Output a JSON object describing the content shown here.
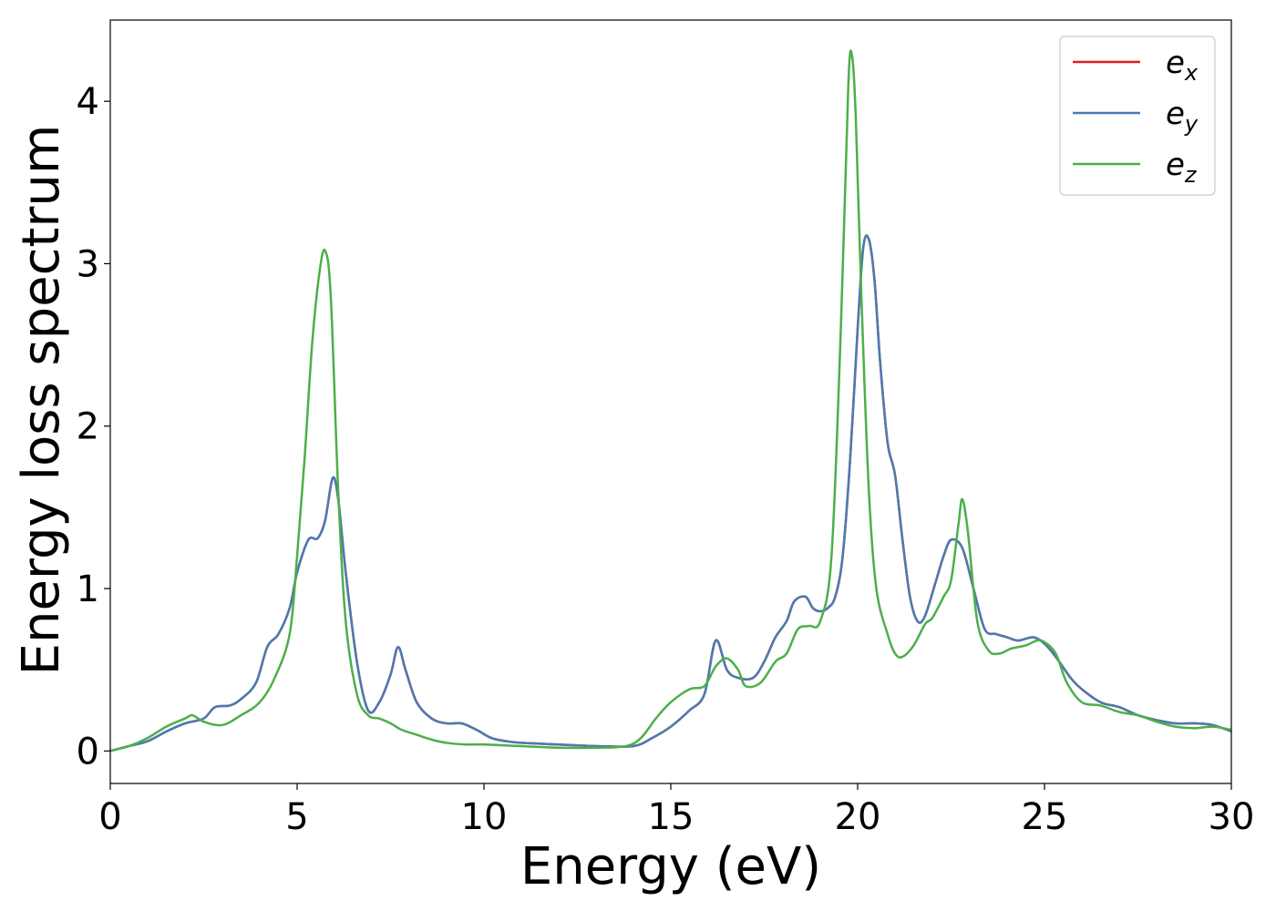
{
  "chart_data": {
    "type": "line",
    "title": "",
    "xlabel": "Energy (eV)",
    "ylabel": "Energy loss spectrum",
    "xlim": [
      0,
      30
    ],
    "ylim": [
      -0.2,
      4.5
    ],
    "xticks": [
      0,
      5,
      10,
      15,
      20,
      25,
      30
    ],
    "xtick_labels": [
      "0",
      "5",
      "10",
      "15",
      "20",
      "25",
      "30"
    ],
    "yticks": [
      0,
      1,
      2,
      3,
      4
    ],
    "ytick_labels": [
      "0",
      "1",
      "2",
      "3",
      "4"
    ],
    "grid": false,
    "legend_position": "top-right",
    "series": [
      {
        "name": "e_x",
        "legend_base": "e",
        "legend_sub": "x",
        "color": "#e41a1c",
        "x": [
          0,
          0.5,
          1,
          1.5,
          2,
          2.5,
          2.8,
          3.2,
          3.5,
          3.9,
          4.2,
          4.5,
          4.8,
          5.0,
          5.3,
          5.55,
          5.75,
          5.95,
          6.1,
          6.3,
          6.6,
          6.9,
          7.2,
          7.5,
          7.7,
          7.9,
          8.2,
          8.6,
          9.0,
          9.4,
          9.8,
          10.2,
          10.6,
          11,
          12,
          13,
          14,
          14.5,
          15,
          15.5,
          15.9,
          16.2,
          16.5,
          16.8,
          17.2,
          17.5,
          17.8,
          18.1,
          18.3,
          18.6,
          18.8,
          19.0,
          19.2,
          19.4,
          19.6,
          19.8,
          20.0,
          20.15,
          20.3,
          20.45,
          20.6,
          20.8,
          21.0,
          21.2,
          21.4,
          21.6,
          21.8,
          22.1,
          22.3,
          22.5,
          22.8,
          23.1,
          23.4,
          23.7,
          24.0,
          24.3,
          24.7,
          25.0,
          25.3,
          25.7,
          26.0,
          26.5,
          27.0,
          27.5,
          28.0,
          28.5,
          29.0,
          29.5,
          30.0
        ],
        "y": [
          0.0,
          0.03,
          0.06,
          0.12,
          0.17,
          0.2,
          0.27,
          0.28,
          0.32,
          0.42,
          0.64,
          0.72,
          0.88,
          1.1,
          1.3,
          1.31,
          1.42,
          1.68,
          1.55,
          1.1,
          0.55,
          0.25,
          0.3,
          0.47,
          0.64,
          0.5,
          0.3,
          0.2,
          0.17,
          0.17,
          0.13,
          0.08,
          0.06,
          0.05,
          0.04,
          0.03,
          0.03,
          0.08,
          0.15,
          0.25,
          0.35,
          0.68,
          0.5,
          0.45,
          0.45,
          0.55,
          0.7,
          0.8,
          0.92,
          0.95,
          0.88,
          0.86,
          0.88,
          0.95,
          1.2,
          1.8,
          2.6,
          3.1,
          3.15,
          2.9,
          2.4,
          1.9,
          1.7,
          1.3,
          0.95,
          0.8,
          0.83,
          1.05,
          1.2,
          1.3,
          1.25,
          1.0,
          0.75,
          0.72,
          0.7,
          0.68,
          0.7,
          0.66,
          0.58,
          0.45,
          0.38,
          0.3,
          0.27,
          0.22,
          0.19,
          0.17,
          0.17,
          0.16,
          0.12
        ]
      },
      {
        "name": "e_y",
        "legend_base": "e",
        "legend_sub": "y",
        "color": "#4a7bb0",
        "x": [
          0,
          0.5,
          1,
          1.5,
          2,
          2.5,
          2.8,
          3.2,
          3.5,
          3.9,
          4.2,
          4.5,
          4.8,
          5.0,
          5.3,
          5.55,
          5.75,
          5.95,
          6.1,
          6.3,
          6.6,
          6.9,
          7.2,
          7.5,
          7.7,
          7.9,
          8.2,
          8.6,
          9.0,
          9.4,
          9.8,
          10.2,
          10.6,
          11,
          12,
          13,
          14,
          14.5,
          15,
          15.5,
          15.9,
          16.2,
          16.5,
          16.8,
          17.2,
          17.5,
          17.8,
          18.1,
          18.3,
          18.6,
          18.8,
          19.0,
          19.2,
          19.4,
          19.6,
          19.8,
          20.0,
          20.15,
          20.3,
          20.45,
          20.6,
          20.8,
          21.0,
          21.2,
          21.4,
          21.6,
          21.8,
          22.1,
          22.3,
          22.5,
          22.8,
          23.1,
          23.4,
          23.7,
          24.0,
          24.3,
          24.7,
          25.0,
          25.3,
          25.7,
          26.0,
          26.5,
          27.0,
          27.5,
          28.0,
          28.5,
          29.0,
          29.5,
          30.0
        ],
        "y": [
          0.0,
          0.03,
          0.06,
          0.12,
          0.17,
          0.2,
          0.27,
          0.28,
          0.32,
          0.42,
          0.64,
          0.72,
          0.88,
          1.1,
          1.3,
          1.31,
          1.42,
          1.68,
          1.55,
          1.1,
          0.55,
          0.25,
          0.3,
          0.47,
          0.64,
          0.5,
          0.3,
          0.2,
          0.17,
          0.17,
          0.13,
          0.08,
          0.06,
          0.05,
          0.04,
          0.03,
          0.03,
          0.08,
          0.15,
          0.25,
          0.35,
          0.68,
          0.5,
          0.45,
          0.45,
          0.55,
          0.7,
          0.8,
          0.92,
          0.95,
          0.88,
          0.86,
          0.88,
          0.95,
          1.2,
          1.8,
          2.6,
          3.1,
          3.15,
          2.9,
          2.4,
          1.9,
          1.7,
          1.3,
          0.95,
          0.8,
          0.83,
          1.05,
          1.2,
          1.3,
          1.25,
          1.0,
          0.75,
          0.72,
          0.7,
          0.68,
          0.7,
          0.66,
          0.58,
          0.45,
          0.38,
          0.3,
          0.27,
          0.22,
          0.19,
          0.17,
          0.17,
          0.16,
          0.12
        ]
      },
      {
        "name": "e_z",
        "legend_base": "e",
        "legend_sub": "z",
        "color": "#4daf4a",
        "x": [
          0,
          0.5,
          1,
          1.5,
          2,
          2.2,
          2.5,
          3,
          3.5,
          4.0,
          4.4,
          4.8,
          5.0,
          5.2,
          5.4,
          5.6,
          5.75,
          5.9,
          6.1,
          6.3,
          6.6,
          6.9,
          7.2,
          7.5,
          7.8,
          8.2,
          8.6,
          9.0,
          9.5,
          10,
          11,
          12,
          13,
          13.8,
          14.2,
          14.6,
          15.0,
          15.5,
          15.9,
          16.2,
          16.5,
          16.8,
          17.0,
          17.4,
          17.8,
          18.1,
          18.4,
          18.7,
          19.0,
          19.3,
          19.55,
          19.75,
          19.85,
          19.95,
          20.1,
          20.3,
          20.5,
          20.8,
          21.0,
          21.2,
          21.5,
          21.8,
          22.0,
          22.3,
          22.5,
          22.7,
          22.8,
          22.95,
          23.2,
          23.5,
          23.8,
          24.1,
          24.5,
          24.8,
          25.0,
          25.3,
          25.6,
          26.0,
          26.5,
          27.0,
          27.5,
          28.0,
          28.5,
          29.0,
          29.5,
          30.0
        ],
        "y": [
          0.0,
          0.03,
          0.08,
          0.15,
          0.2,
          0.22,
          0.18,
          0.16,
          0.22,
          0.3,
          0.45,
          0.72,
          1.2,
          1.8,
          2.5,
          2.95,
          3.08,
          2.8,
          1.6,
          0.8,
          0.35,
          0.22,
          0.2,
          0.17,
          0.13,
          0.1,
          0.07,
          0.05,
          0.04,
          0.04,
          0.03,
          0.02,
          0.02,
          0.03,
          0.08,
          0.2,
          0.3,
          0.38,
          0.4,
          0.52,
          0.57,
          0.5,
          0.4,
          0.42,
          0.55,
          0.6,
          0.75,
          0.77,
          0.8,
          1.2,
          2.6,
          4.1,
          4.28,
          3.9,
          2.8,
          1.6,
          1.0,
          0.72,
          0.6,
          0.58,
          0.65,
          0.78,
          0.82,
          0.95,
          1.05,
          1.4,
          1.55,
          1.35,
          0.8,
          0.62,
          0.6,
          0.63,
          0.65,
          0.68,
          0.67,
          0.6,
          0.42,
          0.3,
          0.28,
          0.24,
          0.22,
          0.18,
          0.15,
          0.14,
          0.15,
          0.13
        ]
      }
    ]
  }
}
